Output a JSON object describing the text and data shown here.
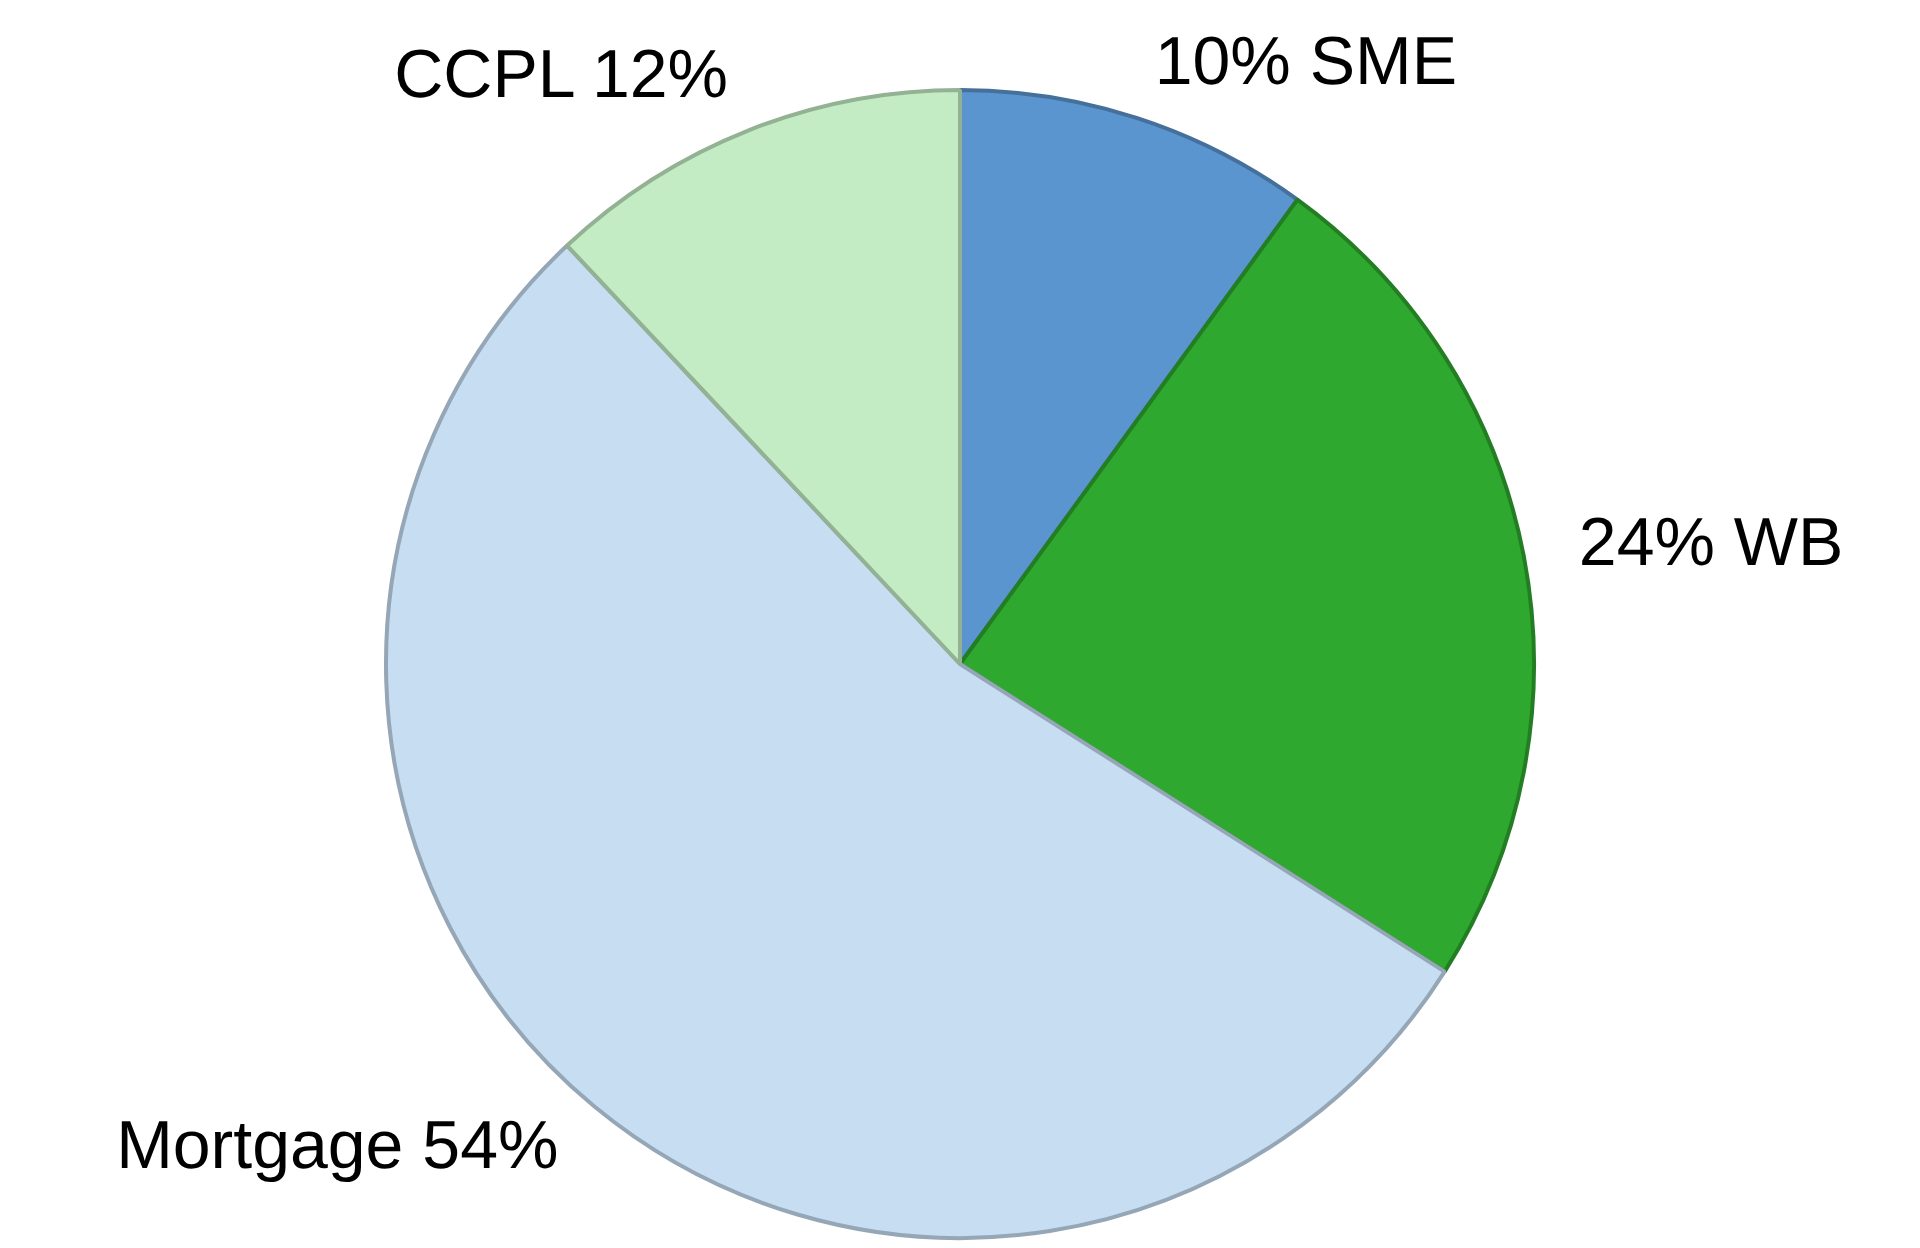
{
  "chart_data": {
    "type": "pie",
    "categories": [
      "SME",
      "WB",
      "Mortgage",
      "CCPL"
    ],
    "values": [
      10,
      24,
      54,
      12
    ],
    "value_labels": [
      "10%",
      "24%",
      "54%",
      "12%"
    ],
    "colors": [
      "#5b95cf",
      "#2ea82e",
      "#c6ddf2",
      "#c4ecc4"
    ]
  }
}
